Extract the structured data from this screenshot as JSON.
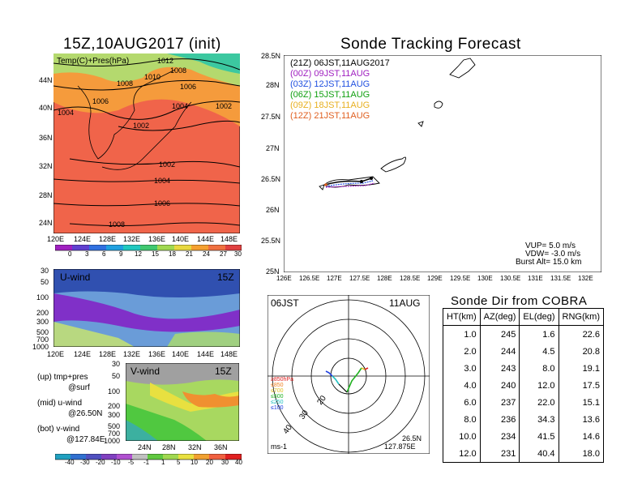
{
  "left_map": {
    "title": "15Z,10AUG2017 (init)",
    "legend_label": "Temp(C)+Pres(hPa)",
    "x_ticks": [
      "120E",
      "124E",
      "128E",
      "132E",
      "136E",
      "140E",
      "144E",
      "148E"
    ],
    "y_ticks": [
      "44N",
      "40N",
      "36N",
      "32N",
      "28N",
      "24N"
    ],
    "pressure_labels": [
      "1012",
      "1010",
      "1008",
      "1008",
      "1006",
      "1006",
      "1004",
      "1004",
      "1002",
      "1002",
      "1002",
      "1004",
      "1006",
      "1008"
    ],
    "colorbar_ticks": [
      "0",
      "3",
      "6",
      "9",
      "12",
      "15",
      "18",
      "21",
      "24",
      "27",
      "30"
    ],
    "colors": {
      "warm": "#f0644a",
      "mid": "#f59b3c",
      "cool": "#b4d96e",
      "cold": "#3cc8a0"
    }
  },
  "u_wind": {
    "label": "U-wind",
    "time": "15Z",
    "y_ticks": [
      "30",
      "50",
      "100",
      "200",
      "300",
      "500",
      "700",
      "1000"
    ],
    "x_ticks": [
      "120E",
      "124E",
      "128E",
      "132E",
      "136E",
      "140E",
      "144E",
      "148E"
    ]
  },
  "v_wind": {
    "label": "V-wind",
    "time": "15Z",
    "y_ticks": [
      "30",
      "50",
      "100",
      "200",
      "300",
      "500",
      "700",
      "1000"
    ],
    "x_ticks": [
      "24N",
      "28N",
      "32N",
      "36N"
    ],
    "colorbar_ticks": [
      "-40",
      "-30",
      "-20",
      "-10",
      "-5",
      "-1",
      "1",
      "5",
      "10",
      "20",
      "30",
      "40"
    ]
  },
  "notes": [
    "(up) tmp+pres",
    "@surf",
    "(mid) u-wind",
    "@26.50N",
    "(bot) v-wind",
    "@127.84E"
  ],
  "tracking": {
    "title": "Sonde Tracking Forecast",
    "legend": [
      {
        "text": "(21Z)  06JST,11AUG2017",
        "color": "#000000"
      },
      {
        "text": "(00Z)  09JST,11AUG",
        "color": "#a020c0"
      },
      {
        "text": "(03Z)  12JST,11AUG",
        "color": "#2050e0"
      },
      {
        "text": "(06Z)  15JST,11AUG",
        "color": "#10a010"
      },
      {
        "text": "(09Z)  18JST,11AUG",
        "color": "#e8b020"
      },
      {
        "text": "(12Z)  21JST,11AUG",
        "color": "#e06020"
      }
    ],
    "x_ticks": [
      "126E",
      "126.5E",
      "127E",
      "127.5E",
      "128E",
      "128.5E",
      "129E",
      "129.5E",
      "130E",
      "130.5E",
      "131E",
      "131.5E",
      "132E"
    ],
    "y_ticks": [
      "28.5N",
      "28N",
      "27.5N",
      "27N",
      "26.5N",
      "26N",
      "25.5N",
      "25N"
    ],
    "params": [
      "VUP=  5.0 m/s",
      "VDW= -3.0 m/s",
      "Burst Alt= 15.0 km"
    ]
  },
  "polar": {
    "time_label": "06JST",
    "date_label": "11AUG",
    "ring_labels": [
      "20",
      "30",
      "40"
    ],
    "levels": [
      "≥850hPa",
      "≤850",
      "≤700",
      "≤500",
      "≤250",
      "≤100"
    ],
    "level_colors": [
      "#e02020",
      "#f08020",
      "#e0c020",
      "#20b020",
      "#20c0c0",
      "#2040e0"
    ],
    "unit": "ms-1",
    "lat": "26.5N",
    "lon": "127.875E"
  },
  "direction": {
    "title": "Sonde Dir from COBRA",
    "headers": [
      "HT(km)",
      "AZ(deg)",
      "EL(deg)",
      "RNG(km)"
    ],
    "rows": [
      [
        "1.0",
        "245",
        "1.6",
        "22.6"
      ],
      [
        "2.0",
        "244",
        "4.5",
        "20.8"
      ],
      [
        "3.0",
        "243",
        "8.0",
        "19.1"
      ],
      [
        "4.0",
        "240",
        "12.0",
        "17.5"
      ],
      [
        "6.0",
        "237",
        "22.0",
        "15.1"
      ],
      [
        "8.0",
        "236",
        "34.3",
        "13.6"
      ],
      [
        "10.0",
        "234",
        "41.5",
        "14.6"
      ],
      [
        "12.0",
        "231",
        "40.4",
        "18.0"
      ]
    ]
  }
}
